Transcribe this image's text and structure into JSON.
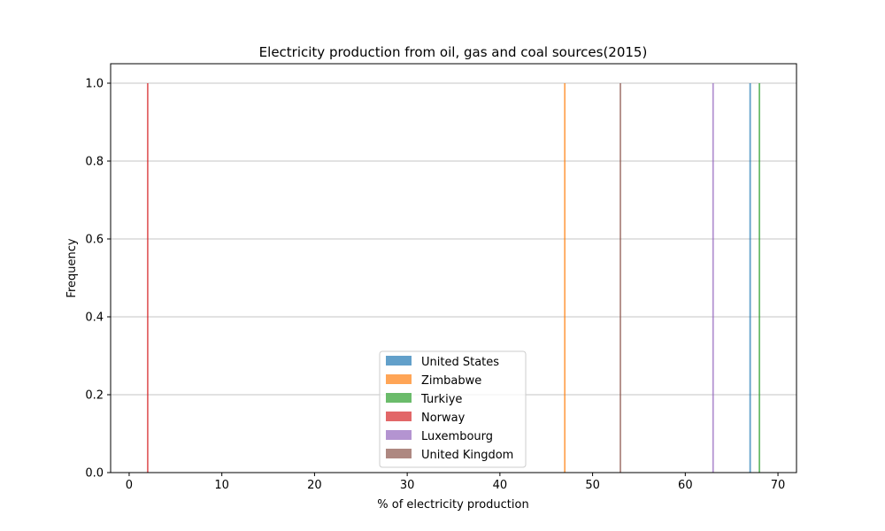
{
  "chart_data": {
    "type": "histogram",
    "title": "Electricity production from oil, gas and coal sources(2015)",
    "xlabel": "% of electricity production",
    "ylabel": "Frequency",
    "xlim": [
      -2,
      72
    ],
    "ylim": [
      0,
      1.05
    ],
    "xticks": [
      0,
      10,
      20,
      30,
      40,
      50,
      60,
      70
    ],
    "yticks": [
      "0.0",
      "0.2",
      "0.4",
      "0.6",
      "0.8",
      "1.0"
    ],
    "grid": "y",
    "legend_position": "lower center",
    "series": [
      {
        "name": "United States",
        "value": 67.0,
        "frequency": 1,
        "color": "#1f77b4"
      },
      {
        "name": "Zimbabwe",
        "value": 47.0,
        "frequency": 1,
        "color": "#ff7f0e"
      },
      {
        "name": "Turkiye",
        "value": 68.0,
        "frequency": 1,
        "color": "#2ca02c"
      },
      {
        "name": "Norway",
        "value": 2.0,
        "frequency": 1,
        "color": "#d62728"
      },
      {
        "name": "Luxembourg",
        "value": 63.0,
        "frequency": 1,
        "color": "#9467bd"
      },
      {
        "name": "United Kingdom",
        "value": 53.0,
        "frequency": 1,
        "color": "#8c564b"
      }
    ]
  }
}
